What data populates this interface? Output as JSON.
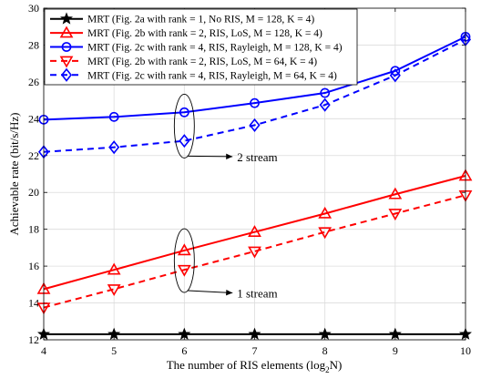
{
  "chart_data": {
    "type": "line",
    "xlabel": "The number of RIS elements (log",
    "xlabel_sub": "2",
    "xlabel_end": "N)",
    "ylabel": "Achievable rate (bit/s/Hz)",
    "xlim": [
      4,
      10
    ],
    "ylim": [
      12,
      30
    ],
    "xticks": [
      4,
      5,
      6,
      7,
      8,
      9,
      10
    ],
    "yticks": [
      12,
      14,
      16,
      18,
      20,
      22,
      24,
      26,
      28,
      30
    ],
    "grid": true,
    "legend_position": "top-left",
    "x": [
      4,
      5,
      6,
      7,
      8,
      9,
      10
    ],
    "series": [
      {
        "name": "MRT (Fig. 2a with rank = 1, No RIS, M = 128, K = 4)",
        "color": "#000000",
        "dash": "solid",
        "marker": "star",
        "values": [
          12.3,
          12.3,
          12.3,
          12.3,
          12.3,
          12.3,
          12.3
        ]
      },
      {
        "name": "MRT (Fig. 2b with rank = 2, RIS, LoS, M = 128, K = 4)",
        "color": "#ff0000",
        "dash": "solid",
        "marker": "triangle-up",
        "values": [
          14.75,
          15.8,
          16.85,
          17.85,
          18.85,
          19.9,
          20.9
        ]
      },
      {
        "name": "MRT (Fig. 2c with rank = 4, RIS, Rayleigh, M = 128, K = 4)",
        "color": "#0000ff",
        "dash": "solid",
        "marker": "circle",
        "values": [
          23.95,
          24.1,
          24.35,
          24.85,
          25.4,
          26.6,
          28.45
        ]
      },
      {
        "name": "MRT (Fig. 2b with rank = 2, RIS, LoS, M = 64, K = 4)",
        "color": "#ff0000",
        "dash": "dashed",
        "marker": "triangle-down",
        "values": [
          13.75,
          14.75,
          15.8,
          16.8,
          17.85,
          18.85,
          19.85
        ]
      },
      {
        "name": "MRT (Fig. 2c with rank = 4, RIS, Rayleigh, M = 64, K = 4)",
        "color": "#0000ff",
        "dash": "dashed",
        "marker": "diamond",
        "values": [
          22.2,
          22.45,
          22.8,
          23.65,
          24.75,
          26.35,
          28.3
        ]
      }
    ],
    "annotations": [
      {
        "text": "2 stream",
        "ellipse_center": [
          6,
          23.6
        ],
        "text_anchor": [
          6.75,
          21.7
        ]
      },
      {
        "text": "1 stream",
        "ellipse_center": [
          6,
          16.3
        ],
        "text_anchor": [
          6.75,
          14.3
        ]
      }
    ]
  }
}
